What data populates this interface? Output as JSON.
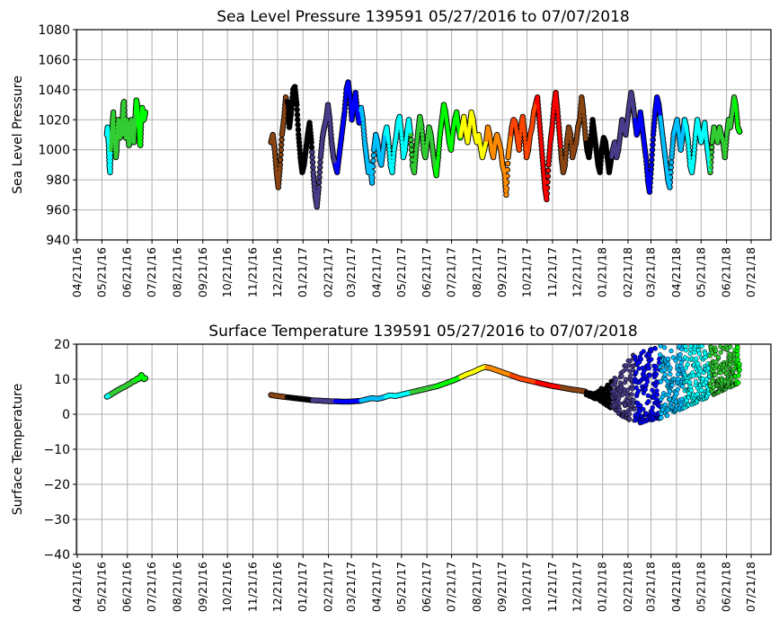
{
  "chart_data": [
    {
      "type": "scatter",
      "title": "Sea Level Pressure 139591  05/27/2016 to 07/07/2018",
      "xlabel": "",
      "ylabel": "Sea Level Pressure",
      "xlim": [
        "2016-04-11",
        "2018-08-01"
      ],
      "ylim": [
        940,
        1080
      ],
      "yticks": [
        940,
        960,
        980,
        1000,
        1020,
        1040,
        1060,
        1080
      ],
      "xticks": [
        "04/21/16",
        "05/21/16",
        "06/21/16",
        "07/21/16",
        "08/21/16",
        "09/21/16",
        "10/21/16",
        "11/21/16",
        "12/21/16",
        "01/21/17",
        "02/21/17",
        "03/21/17",
        "04/21/17",
        "05/21/17",
        "06/21/17",
        "07/21/17",
        "08/21/17",
        "09/21/17",
        "10/21/17",
        "11/21/17",
        "12/21/17",
        "01/21/18",
        "02/21/18",
        "03/21/18",
        "04/21/18",
        "05/21/18",
        "06/21/18",
        "07/21/18"
      ],
      "grid": true,
      "color_by": "calendar month",
      "month_colors": {
        "1": "#000000",
        "2": "#483d8b",
        "3": "#0000ff",
        "4": "#00bfff",
        "5": "#00ffff",
        "6": "#32cd32",
        "7": "#00ff00",
        "8": "#ffff00",
        "9": "#ff8c00",
        "10": "#ff4500",
        "11": "#ff0000",
        "12": "#8b4513"
      },
      "segments": [
        {
          "start": "2016-05-27",
          "end": "2016-07-13",
          "values": [
            1010,
            1015,
            1005,
            990,
            985,
            1000,
            1010,
            1018,
            1025,
            1010,
            1005,
            995,
            1000,
            1012,
            1020,
            1015,
            1008,
            1012,
            1010,
            1020,
            1030,
            1032,
            1015,
            1008,
            1020,
            1018,
            1010,
            1003,
            1005,
            1012,
            1020,
            1018,
            1010,
            1005,
            1015,
            1025,
            1033,
            1030,
            1022,
            1015,
            1005,
            1003,
            1018,
            1028,
            1025,
            1020,
            1022,
            1025
          ]
        },
        {
          "start": "2016-12-13",
          "end": "2018-07-07",
          "values": [
            1005,
            1010,
            1000,
            985,
            975,
            990,
            1010,
            1020,
            1035,
            1030,
            1015,
            1025,
            1040,
            1042,
            1030,
            1010,
            995,
            985,
            990,
            1000,
            1010,
            1018,
            1005,
            985,
            970,
            962,
            975,
            995,
            1008,
            1015,
            1020,
            1030,
            1020,
            1005,
            995,
            990,
            985,
            995,
            1005,
            1015,
            1025,
            1040,
            1045,
            1035,
            1020,
            1030,
            1038,
            1025,
            1018,
            1028,
            1020,
            1005,
            995,
            985,
            990,
            978,
            1000,
            1010,
            1005,
            995,
            990,
            1000,
            1010,
            1015,
            1005,
            990,
            985,
            1000,
            1008,
            1018,
            1022,
            1010,
            995,
            1000,
            1012,
            1020,
            1010,
            990,
            985,
            1000,
            1012,
            1022,
            1015,
            1000,
            995,
            1005,
            1015,
            1010,
            1000,
            990,
            983,
            995,
            1010,
            1020,
            1030,
            1025,
            1015,
            1005,
            1000,
            1012,
            1020,
            1025,
            1015,
            1008,
            1015,
            1022,
            1012,
            1005,
            1015,
            1025,
            1020,
            1010,
            1005,
            1010,
            1002,
            995,
            1000,
            1005,
            1015,
            1010,
            1000,
            995,
            1005,
            1010,
            1005,
            1000,
            990,
            985,
            970,
            995,
            1005,
            1015,
            1020,
            1018,
            1008,
            1000,
            1015,
            1022,
            1010,
            995,
            1000,
            1010,
            1015,
            1025,
            1030,
            1035,
            1020,
            1005,
            990,
            975,
            967,
            990,
            1005,
            1015,
            1030,
            1038,
            1025,
            1010,
            995,
            985,
            990,
            1005,
            1015,
            1010,
            995,
            1000,
            1005,
            1015,
            1020,
            1035,
            1025,
            1010,
            1000,
            995,
            1005,
            1020,
            1010,
            1000,
            990,
            985,
            1000,
            1008,
            1005,
            995,
            985,
            993,
            1000,
            1005,
            995,
            1000,
            1010,
            1020,
            1015,
            1010,
            1020,
            1030,
            1038,
            1030,
            1020,
            1010,
            1015,
            1025,
            1015,
            1005,
            995,
            980,
            972,
            990,
            1010,
            1025,
            1035,
            1030,
            1020,
            1010,
            1000,
            990,
            980,
            975,
            995,
            1010,
            1015,
            1020,
            1010,
            1000,
            1010,
            1020,
            1015,
            1005,
            990,
            985,
            995,
            1010,
            1020,
            1012,
            1005,
            1010,
            1018,
            1005,
            995,
            985,
            1005,
            1015,
            1010,
            1005,
            1015,
            1010,
            1005,
            995,
            1010,
            1020,
            1015,
            1025,
            1035,
            1028,
            1015,
            1012
          ]
        }
      ]
    },
    {
      "type": "scatter",
      "title": "Surface Temperature 139591  05/27/2016 to 07/07/2018",
      "xlabel": "",
      "ylabel": "Surface Temperature",
      "xlim": [
        "2016-04-11",
        "2018-08-01"
      ],
      "ylim": [
        -40,
        20
      ],
      "yticks": [
        -40,
        -30,
        -20,
        -10,
        0,
        10,
        20
      ],
      "xticks": [
        "04/21/16",
        "05/21/16",
        "06/21/16",
        "07/21/16",
        "08/21/16",
        "09/21/16",
        "10/21/16",
        "11/21/16",
        "12/21/16",
        "01/21/17",
        "02/21/17",
        "03/21/17",
        "04/21/17",
        "05/21/17",
        "06/21/17",
        "07/21/17",
        "08/21/17",
        "09/21/17",
        "10/21/17",
        "11/21/17",
        "12/21/17",
        "01/21/18",
        "02/21/18",
        "03/21/18",
        "04/21/18",
        "05/21/18",
        "06/21/18",
        "07/21/18"
      ],
      "grid": true,
      "color_by": "calendar month",
      "segments": [
        {
          "start": "2016-05-27",
          "end": "2016-07-13",
          "values": [
            5.0,
            5.2,
            5.4,
            5.6,
            5.9,
            6.1,
            6.3,
            6.6,
            6.8,
            7.0,
            7.2,
            7.5,
            7.6,
            7.8,
            8.0,
            8.2,
            8.5,
            8.6,
            8.9,
            9.2,
            9.5,
            9.4,
            9.8,
            10.2,
            10.0,
            10.6,
            11.2,
            10.5,
            10.0,
            10.3
          ]
        },
        {
          "start": "2016-12-13",
          "end": "2017-12-31",
          "values": [
            5.5,
            5.2,
            5.0,
            4.8,
            4.6,
            4.4,
            4.2,
            4.0,
            3.9,
            3.8,
            3.7,
            3.7,
            3.6,
            3.6,
            3.7,
            3.8,
            4.2,
            4.6,
            4.4,
            4.8,
            5.4,
            5.2,
            5.6,
            6.0,
            6.4,
            6.8,
            7.2,
            7.6,
            8.0,
            8.6,
            9.2,
            9.8,
            10.6,
            11.4,
            12.0,
            12.8,
            13.5,
            13.2,
            12.6,
            12.0,
            11.4,
            10.8,
            10.2,
            9.8,
            9.4,
            9.0,
            8.6,
            8.2,
            7.9,
            7.6,
            7.3,
            7.0,
            6.8,
            6.5
          ]
        },
        {
          "start": "2018-01-01",
          "end": "2018-07-07",
          "scatter": true,
          "low": [
            5.5,
            4.5,
            3.5,
            2.0,
            0.5,
            -1.0,
            -2.0,
            -2.5,
            -2.0,
            -1.5,
            -1.0,
            0.0,
            1.0,
            2.0,
            3.0,
            4.0,
            5.0,
            6.0,
            7.0,
            8.0,
            9.0
          ],
          "high": [
            6.5,
            6.0,
            7.5,
            9.0,
            11.0,
            14.0,
            17.0,
            19.0,
            20.0,
            20.0,
            20.0,
            20.0,
            20.0,
            20.0,
            20.0,
            20.0,
            20.0,
            20.0,
            20.0,
            20.0,
            20.0
          ]
        }
      ]
    }
  ]
}
